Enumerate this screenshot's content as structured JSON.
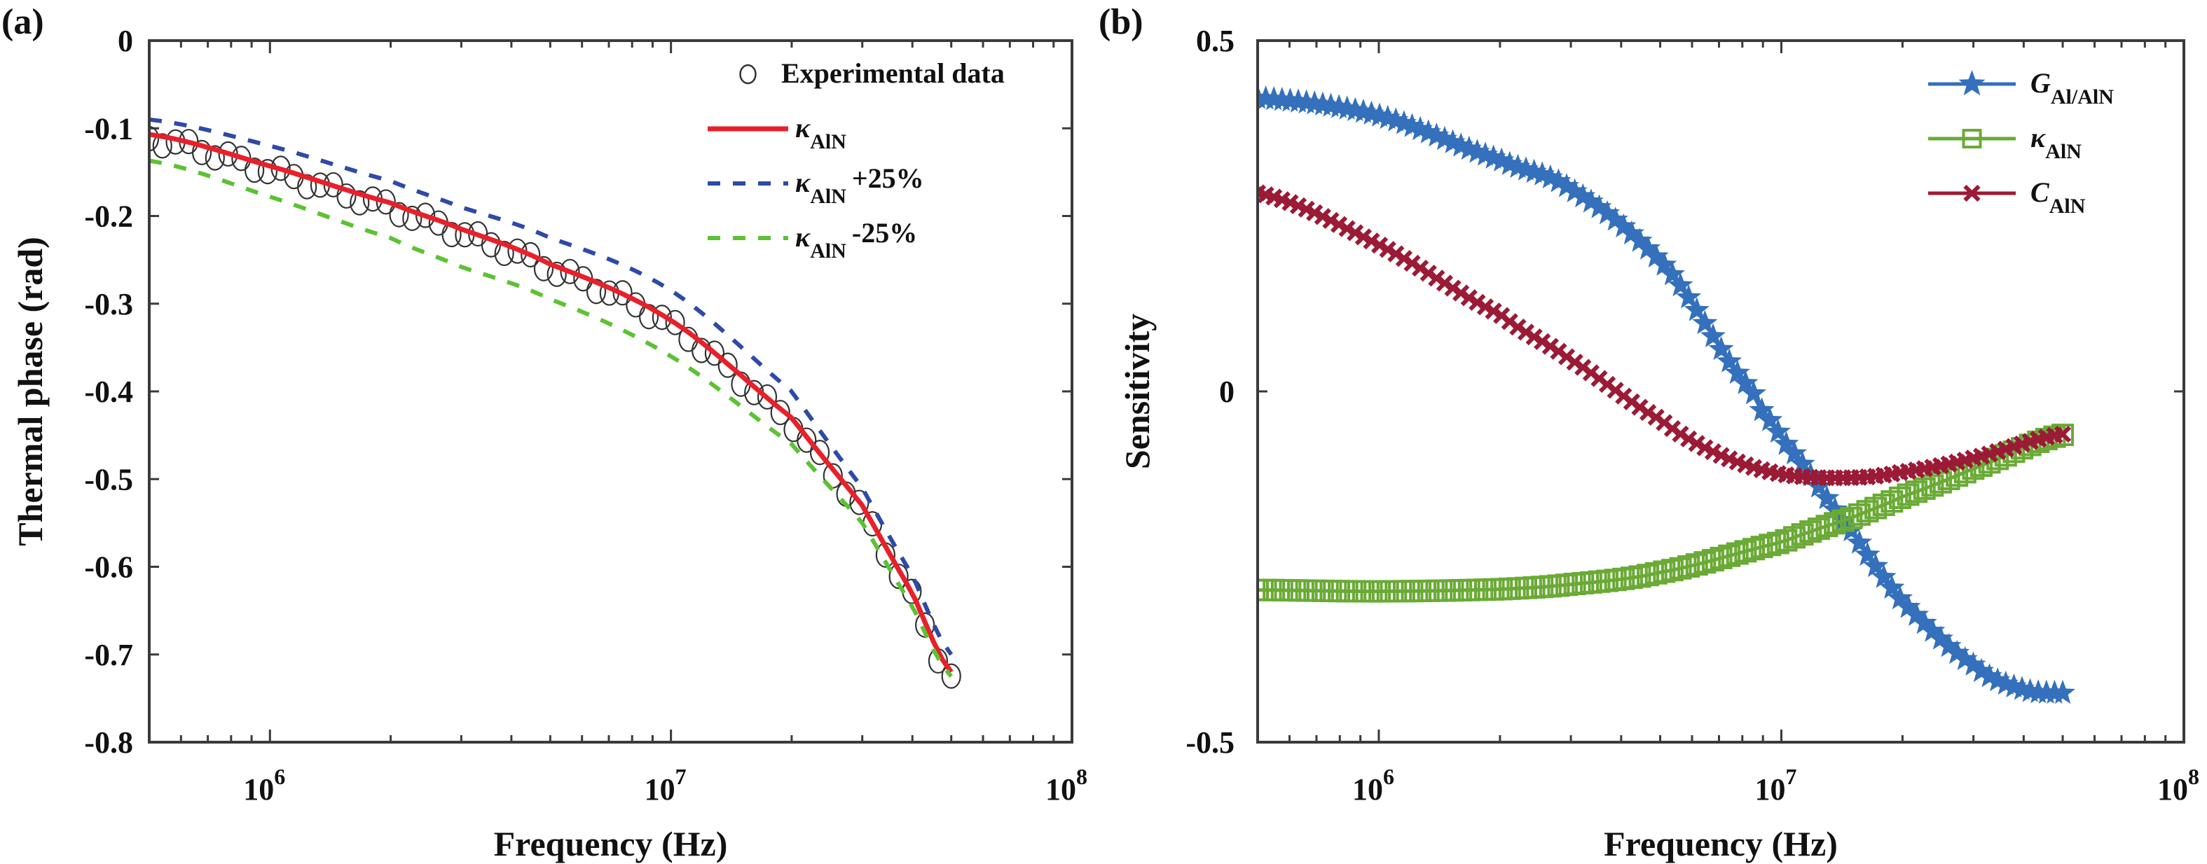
{
  "chart_data": [
    {
      "id": "a",
      "panel_label": "(a)",
      "type": "line",
      "title": "",
      "xlabel": "Frequency (Hz)",
      "ylabel": "Thermal phase (rad)",
      "xscale": "log",
      "xlim": [
        500000,
        100000000
      ],
      "ylim": [
        -0.8,
        0
      ],
      "xticks": [
        {
          "value": 1000000,
          "base": "10",
          "exp": "6"
        },
        {
          "value": 10000000,
          "base": "10",
          "exp": "7"
        },
        {
          "value": 100000000,
          "base": "10",
          "exp": "8"
        }
      ],
      "yticks": [
        {
          "value": 0,
          "label": "0"
        },
        {
          "value": -0.1,
          "label": "-0.1"
        },
        {
          "value": -0.2,
          "label": "-0.2"
        },
        {
          "value": -0.3,
          "label": "-0.3"
        },
        {
          "value": -0.4,
          "label": "-0.4"
        },
        {
          "value": -0.5,
          "label": "-0.5"
        },
        {
          "value": -0.6,
          "label": "-0.6"
        },
        {
          "value": -0.7,
          "label": "-0.7"
        },
        {
          "value": -0.8,
          "label": "-0.8"
        }
      ],
      "grid": false,
      "legend_position": "top-right",
      "series": [
        {
          "name": "Experimental data",
          "legend_main": "Experimental data",
          "legend_sub": "",
          "legend_suffix": "",
          "style": "markers",
          "marker": "circle",
          "color": "#333333",
          "x": [
            500000,
            5000000,
            50000000
          ],
          "y": [
            -0.115,
            -0.25,
            -0.715
          ],
          "note": "densely sampled; generated along fit"
        },
        {
          "name": "κ_AlN",
          "legend_main": "κ",
          "legend_sub": "AlN",
          "legend_suffix": "",
          "style": "solid",
          "color": "#e8202a",
          "x": [
            500000,
            1000000,
            2000000,
            3000000,
            5000000,
            10000000,
            20000000,
            30000000,
            40000000,
            50000000
          ],
          "y": [
            -0.107,
            -0.143,
            -0.185,
            -0.215,
            -0.255,
            -0.319,
            -0.43,
            -0.53,
            -0.63,
            -0.72
          ]
        },
        {
          "name": "κ_AlN +25%",
          "legend_main": "κ",
          "legend_sub": "AlN",
          "legend_suffix": "+25%",
          "style": "dashed",
          "color": "#2e4aa8",
          "x": [
            500000,
            1000000,
            2000000,
            3000000,
            5000000,
            10000000,
            20000000,
            30000000,
            40000000,
            50000000
          ],
          "y": [
            -0.09,
            -0.12,
            -0.16,
            -0.19,
            -0.225,
            -0.285,
            -0.4,
            -0.51,
            -0.61,
            -0.7
          ]
        },
        {
          "name": "κ_AlN -25%",
          "legend_main": "κ",
          "legend_sub": "AlN",
          "legend_suffix": "-25%",
          "style": "dashed",
          "color": "#5cc234",
          "x": [
            500000,
            1000000,
            2000000,
            3000000,
            5000000,
            10000000,
            20000000,
            30000000,
            40000000,
            50000000
          ],
          "y": [
            -0.137,
            -0.178,
            -0.225,
            -0.258,
            -0.295,
            -0.36,
            -0.46,
            -0.55,
            -0.645,
            -0.725
          ]
        }
      ]
    },
    {
      "id": "b",
      "panel_label": "(b)",
      "type": "line",
      "title": "",
      "xlabel": "Frequency (Hz)",
      "ylabel": "Sensitivity",
      "xscale": "log",
      "xlim": [
        500000,
        100000000
      ],
      "ylim": [
        -0.5,
        0.5
      ],
      "xticks": [
        {
          "value": 1000000,
          "base": "10",
          "exp": "6"
        },
        {
          "value": 10000000,
          "base": "10",
          "exp": "7"
        },
        {
          "value": 100000000,
          "base": "10",
          "exp": "8"
        }
      ],
      "yticks": [
        {
          "value": 0.5,
          "label": "0.5"
        },
        {
          "value": 0,
          "label": "0"
        },
        {
          "value": -0.5,
          "label": "-0.5"
        }
      ],
      "grid": false,
      "legend_position": "top-right",
      "series": [
        {
          "name": "G_Al/AlN",
          "legend_main": "G",
          "legend_sub": "Al/AlN",
          "legend_suffix": "",
          "style": "solid-markers",
          "marker": "star",
          "color": "#3470bb",
          "x": [
            500000,
            1000000,
            2000000,
            3000000,
            5200000,
            8500000,
            10000000,
            15000000,
            20000000,
            30000000,
            40000000,
            50000000
          ],
          "y": [
            0.418,
            0.393,
            0.33,
            0.288,
            0.176,
            0.0,
            -0.068,
            -0.2,
            -0.3,
            -0.39,
            -0.425,
            -0.43
          ]
        },
        {
          "name": "κ_AlN",
          "legend_main": "κ",
          "legend_sub": "AlN",
          "legend_suffix": "",
          "style": "solid-markers",
          "marker": "square",
          "color": "#6aaa35",
          "x": [
            500000,
            1000000,
            2000000,
            3000000,
            5000000,
            10000000,
            15000000,
            20000000,
            30000000,
            50000000
          ],
          "y": [
            -0.283,
            -0.285,
            -0.282,
            -0.275,
            -0.258,
            -0.215,
            -0.18,
            -0.15,
            -0.11,
            -0.062
          ]
        },
        {
          "name": "C_AlN",
          "legend_main": "C",
          "legend_sub": "AlN",
          "legend_suffix": "",
          "style": "solid-markers",
          "marker": "x",
          "color": "#9b1a35",
          "x": [
            500000,
            1000000,
            2000000,
            3000000,
            5000000,
            7000000,
            10000000,
            15000000,
            20000000,
            30000000,
            50000000
          ],
          "y": [
            0.283,
            0.209,
            0.11,
            0.045,
            -0.04,
            -0.09,
            -0.118,
            -0.123,
            -0.115,
            -0.095,
            -0.061
          ]
        }
      ]
    }
  ]
}
